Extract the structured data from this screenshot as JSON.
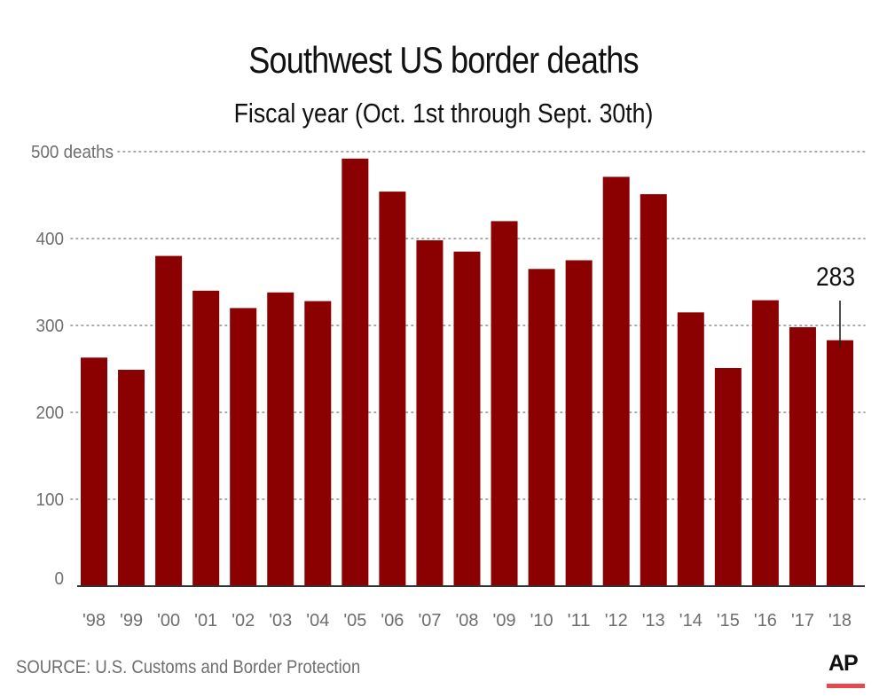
{
  "header": {
    "title": "Southwest US border deaths",
    "subtitle": "Fiscal year (Oct. 1st through Sept. 30th)"
  },
  "footer": {
    "source": "SOURCE: U.S. Customs and Border Protection",
    "logo_text": "AP"
  },
  "colors": {
    "bar": "#8b0000",
    "grid": "#8a8a8a",
    "tick_text": "#6e6e6e",
    "baseline": "#333333",
    "logo_accent": "#e8474c"
  },
  "chart_data": {
    "type": "bar",
    "title": "Southwest US border deaths",
    "subtitle": "Fiscal year (Oct. 1st through Sept. 30th)",
    "xlabel": "",
    "ylabel": "",
    "categories": [
      "'98",
      "'99",
      "'00",
      "'01",
      "'02",
      "'03",
      "'04",
      "'05",
      "'06",
      "'07",
      "'08",
      "'09",
      "'10",
      "'11",
      "'12",
      "'13",
      "'14",
      "'15",
      "'16",
      "'17",
      "'18"
    ],
    "values": [
      263,
      249,
      380,
      340,
      320,
      338,
      328,
      492,
      454,
      398,
      385,
      420,
      365,
      375,
      471,
      451,
      315,
      251,
      329,
      298,
      283
    ],
    "ylim": [
      0,
      500
    ],
    "yticks": [
      0,
      100,
      200,
      300,
      400,
      500
    ],
    "ytick_labels": [
      "0",
      "100",
      "200",
      "300",
      "400",
      "500 deaths"
    ],
    "grid": true,
    "annotations": [
      {
        "category": "'18",
        "text": "283"
      }
    ]
  }
}
